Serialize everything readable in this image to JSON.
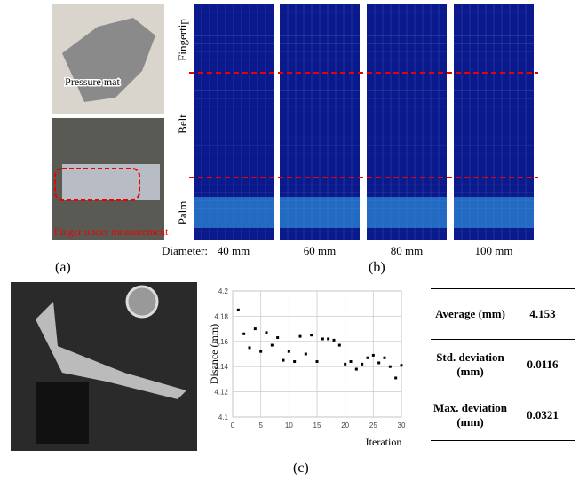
{
  "panel_a": {
    "pressure_label": "Pressure mat",
    "finger_label": "Finger under measurement",
    "caption": "(a)"
  },
  "panel_b": {
    "rows": [
      "Fingertip",
      "Belt",
      "Palm"
    ],
    "diameter_label": "Diameter:",
    "diameters": [
      "40 mm",
      "60 mm",
      "80 mm",
      "100 mm"
    ],
    "caption": "(b)"
  },
  "chart_data": {
    "type": "scatter",
    "y_label": "Disance (mm)",
    "x_label": "Iteration",
    "x": [
      1,
      2,
      3,
      4,
      5,
      6,
      7,
      8,
      9,
      10,
      11,
      12,
      13,
      14,
      15,
      16,
      17,
      18,
      19,
      20,
      21,
      22,
      23,
      24,
      25,
      26,
      27,
      28,
      29,
      30
    ],
    "values": [
      4.185,
      4.166,
      4.155,
      4.17,
      4.152,
      4.167,
      4.157,
      4.163,
      4.145,
      4.152,
      4.144,
      4.164,
      4.15,
      4.165,
      4.144,
      4.162,
      4.162,
      4.161,
      4.157,
      4.142,
      4.144,
      4.138,
      4.142,
      4.147,
      4.149,
      4.143,
      4.147,
      4.14,
      4.131,
      4.141
    ],
    "color": "#000000",
    "xlim": [
      0,
      30
    ],
    "ylim": [
      4.1,
      4.2
    ],
    "xticks": [
      0,
      5,
      10,
      15,
      20,
      25,
      30
    ],
    "yticks": [
      4.1,
      4.12,
      4.14,
      4.16,
      4.18,
      4.2
    ],
    "grid": true
  },
  "table": {
    "rows": [
      [
        "Average (mm)",
        "4.153"
      ],
      [
        "Std. deviation (mm)",
        "0.0116"
      ],
      [
        "Max. deviation (mm)",
        "0.0321"
      ]
    ]
  },
  "panel_c": {
    "caption": "(c)"
  }
}
